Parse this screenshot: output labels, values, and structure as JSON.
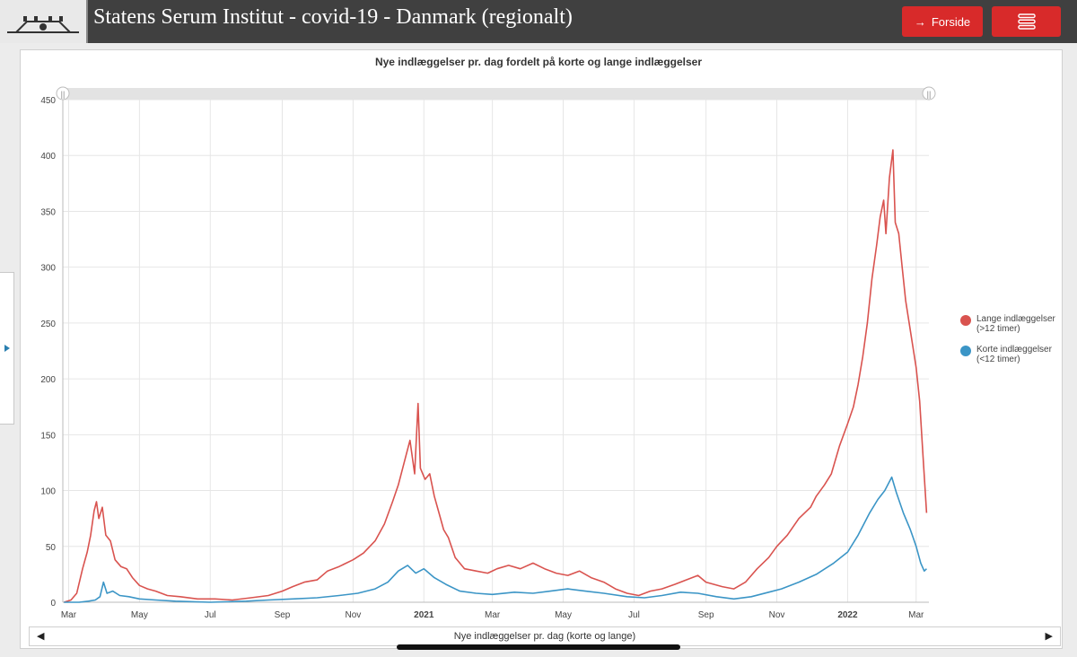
{
  "header": {
    "title": "Statens Serum Institut - covid-19 - Danmark (regionalt)",
    "forside_label": "Forside"
  },
  "colors": {
    "header_bg": "#404040",
    "button": "#d82a2a",
    "lange": "#d9534f",
    "korte": "#3b95c6"
  },
  "chart_data": {
    "type": "line",
    "title": "Nye indlæggelser pr. dag fordelt på korte og lange indlæggelser",
    "ylim": [
      0,
      450
    ],
    "y_ticks": [
      0,
      50,
      100,
      150,
      200,
      250,
      300,
      350,
      400,
      450
    ],
    "x_ticks": [
      {
        "label": "Mar",
        "date": "2020-03-01"
      },
      {
        "label": "May",
        "date": "2020-05-01"
      },
      {
        "label": "Jul",
        "date": "2020-07-01"
      },
      {
        "label": "Sep",
        "date": "2020-09-01"
      },
      {
        "label": "Nov",
        "date": "2020-11-01"
      },
      {
        "label": "2021",
        "date": "2021-01-01",
        "bold": true
      },
      {
        "label": "Mar",
        "date": "2021-03-01"
      },
      {
        "label": "May",
        "date": "2021-05-01"
      },
      {
        "label": "Jul",
        "date": "2021-07-01"
      },
      {
        "label": "Sep",
        "date": "2021-09-01"
      },
      {
        "label": "Nov",
        "date": "2021-11-01"
      },
      {
        "label": "2022",
        "date": "2022-01-01",
        "bold": true
      },
      {
        "label": "Mar",
        "date": "2022-03-01"
      }
    ],
    "x_range": [
      "2020-02-25",
      "2022-03-12"
    ],
    "grid": true,
    "legend_position": "right",
    "scrollbar_label": "Nye indlæggelser pr. dag (korte og lange)",
    "series": [
      {
        "name": "Lange indlæggelser (>12 timer)",
        "color": "#d9534f",
        "points": [
          [
            "2020-02-26",
            0
          ],
          [
            "2020-03-03",
            2
          ],
          [
            "2020-03-08",
            8
          ],
          [
            "2020-03-13",
            30
          ],
          [
            "2020-03-17",
            45
          ],
          [
            "2020-03-20",
            60
          ],
          [
            "2020-03-23",
            82
          ],
          [
            "2020-03-25",
            90
          ],
          [
            "2020-03-27",
            75
          ],
          [
            "2020-03-30",
            85
          ],
          [
            "2020-04-02",
            60
          ],
          [
            "2020-04-06",
            55
          ],
          [
            "2020-04-10",
            38
          ],
          [
            "2020-04-15",
            32
          ],
          [
            "2020-04-20",
            30
          ],
          [
            "2020-04-25",
            22
          ],
          [
            "2020-05-01",
            15
          ],
          [
            "2020-05-08",
            12
          ],
          [
            "2020-05-15",
            10
          ],
          [
            "2020-05-25",
            6
          ],
          [
            "2020-06-05",
            5
          ],
          [
            "2020-06-20",
            3
          ],
          [
            "2020-07-05",
            3
          ],
          [
            "2020-07-20",
            2
          ],
          [
            "2020-08-05",
            4
          ],
          [
            "2020-08-20",
            6
          ],
          [
            "2020-09-01",
            10
          ],
          [
            "2020-09-10",
            14
          ],
          [
            "2020-09-20",
            18
          ],
          [
            "2020-10-01",
            20
          ],
          [
            "2020-10-10",
            28
          ],
          [
            "2020-10-20",
            32
          ],
          [
            "2020-11-01",
            38
          ],
          [
            "2020-11-10",
            44
          ],
          [
            "2020-11-20",
            55
          ],
          [
            "2020-11-28",
            70
          ],
          [
            "2020-12-05",
            90
          ],
          [
            "2020-12-10",
            105
          ],
          [
            "2020-12-15",
            125
          ],
          [
            "2020-12-20",
            145
          ],
          [
            "2020-12-24",
            115
          ],
          [
            "2020-12-27",
            178
          ],
          [
            "2020-12-29",
            120
          ],
          [
            "2021-01-02",
            110
          ],
          [
            "2021-01-06",
            115
          ],
          [
            "2021-01-10",
            95
          ],
          [
            "2021-01-14",
            80
          ],
          [
            "2021-01-18",
            65
          ],
          [
            "2021-01-22",
            58
          ],
          [
            "2021-01-28",
            40
          ],
          [
            "2021-02-05",
            30
          ],
          [
            "2021-02-15",
            28
          ],
          [
            "2021-02-25",
            26
          ],
          [
            "2021-03-05",
            30
          ],
          [
            "2021-03-15",
            33
          ],
          [
            "2021-03-25",
            30
          ],
          [
            "2021-04-05",
            35
          ],
          [
            "2021-04-15",
            30
          ],
          [
            "2021-04-25",
            26
          ],
          [
            "2021-05-05",
            24
          ],
          [
            "2021-05-15",
            28
          ],
          [
            "2021-05-25",
            22
          ],
          [
            "2021-06-05",
            18
          ],
          [
            "2021-06-15",
            12
          ],
          [
            "2021-06-25",
            8
          ],
          [
            "2021-07-05",
            6
          ],
          [
            "2021-07-15",
            10
          ],
          [
            "2021-07-25",
            12
          ],
          [
            "2021-08-05",
            16
          ],
          [
            "2021-08-15",
            20
          ],
          [
            "2021-08-25",
            24
          ],
          [
            "2021-09-01",
            18
          ],
          [
            "2021-09-15",
            14
          ],
          [
            "2021-09-25",
            12
          ],
          [
            "2021-10-05",
            18
          ],
          [
            "2021-10-15",
            30
          ],
          [
            "2021-10-25",
            40
          ],
          [
            "2021-11-01",
            50
          ],
          [
            "2021-11-10",
            60
          ],
          [
            "2021-11-20",
            75
          ],
          [
            "2021-11-30",
            85
          ],
          [
            "2021-12-05",
            95
          ],
          [
            "2021-12-12",
            105
          ],
          [
            "2021-12-18",
            115
          ],
          [
            "2021-12-25",
            140
          ],
          [
            "2022-01-01",
            160
          ],
          [
            "2022-01-06",
            175
          ],
          [
            "2022-01-10",
            195
          ],
          [
            "2022-01-14",
            220
          ],
          [
            "2022-01-18",
            250
          ],
          [
            "2022-01-22",
            290
          ],
          [
            "2022-01-26",
            320
          ],
          [
            "2022-01-29",
            345
          ],
          [
            "2022-02-01",
            360
          ],
          [
            "2022-02-03",
            330
          ],
          [
            "2022-02-06",
            380
          ],
          [
            "2022-02-09",
            405
          ],
          [
            "2022-02-11",
            340
          ],
          [
            "2022-02-14",
            330
          ],
          [
            "2022-02-17",
            300
          ],
          [
            "2022-02-20",
            270
          ],
          [
            "2022-02-23",
            250
          ],
          [
            "2022-02-26",
            230
          ],
          [
            "2022-03-01",
            210
          ],
          [
            "2022-03-04",
            180
          ],
          [
            "2022-03-07",
            130
          ],
          [
            "2022-03-10",
            80
          ]
        ]
      },
      {
        "name": "Korte indlæggelser (<12 timer)",
        "color": "#3b95c6",
        "points": [
          [
            "2020-02-26",
            0
          ],
          [
            "2020-03-10",
            0
          ],
          [
            "2020-03-18",
            1
          ],
          [
            "2020-03-24",
            2
          ],
          [
            "2020-03-28",
            5
          ],
          [
            "2020-03-31",
            18
          ],
          [
            "2020-04-03",
            8
          ],
          [
            "2020-04-08",
            10
          ],
          [
            "2020-04-14",
            6
          ],
          [
            "2020-04-22",
            5
          ],
          [
            "2020-05-01",
            3
          ],
          [
            "2020-05-15",
            2
          ],
          [
            "2020-06-01",
            1
          ],
          [
            "2020-07-01",
            0
          ],
          [
            "2020-08-01",
            1
          ],
          [
            "2020-08-20",
            2
          ],
          [
            "2020-09-10",
            3
          ],
          [
            "2020-10-01",
            4
          ],
          [
            "2020-10-20",
            6
          ],
          [
            "2020-11-05",
            8
          ],
          [
            "2020-11-20",
            12
          ],
          [
            "2020-12-01",
            18
          ],
          [
            "2020-12-10",
            28
          ],
          [
            "2020-12-18",
            33
          ],
          [
            "2020-12-25",
            26
          ],
          [
            "2021-01-01",
            30
          ],
          [
            "2021-01-10",
            22
          ],
          [
            "2021-01-20",
            16
          ],
          [
            "2021-02-01",
            10
          ],
          [
            "2021-02-15",
            8
          ],
          [
            "2021-03-01",
            7
          ],
          [
            "2021-03-20",
            9
          ],
          [
            "2021-04-05",
            8
          ],
          [
            "2021-04-20",
            10
          ],
          [
            "2021-05-05",
            12
          ],
          [
            "2021-05-20",
            10
          ],
          [
            "2021-06-05",
            8
          ],
          [
            "2021-06-25",
            5
          ],
          [
            "2021-07-10",
            4
          ],
          [
            "2021-07-25",
            6
          ],
          [
            "2021-08-10",
            9
          ],
          [
            "2021-08-25",
            8
          ],
          [
            "2021-09-10",
            5
          ],
          [
            "2021-09-25",
            3
          ],
          [
            "2021-10-10",
            5
          ],
          [
            "2021-10-25",
            9
          ],
          [
            "2021-11-05",
            12
          ],
          [
            "2021-11-20",
            18
          ],
          [
            "2021-12-05",
            25
          ],
          [
            "2021-12-20",
            35
          ],
          [
            "2022-01-01",
            45
          ],
          [
            "2022-01-10",
            60
          ],
          [
            "2022-01-20",
            80
          ],
          [
            "2022-01-27",
            92
          ],
          [
            "2022-02-02",
            100
          ],
          [
            "2022-02-08",
            112
          ],
          [
            "2022-02-12",
            98
          ],
          [
            "2022-02-18",
            80
          ],
          [
            "2022-02-24",
            65
          ],
          [
            "2022-03-01",
            50
          ],
          [
            "2022-03-05",
            35
          ],
          [
            "2022-03-08",
            28
          ],
          [
            "2022-03-10",
            30
          ]
        ]
      }
    ]
  }
}
